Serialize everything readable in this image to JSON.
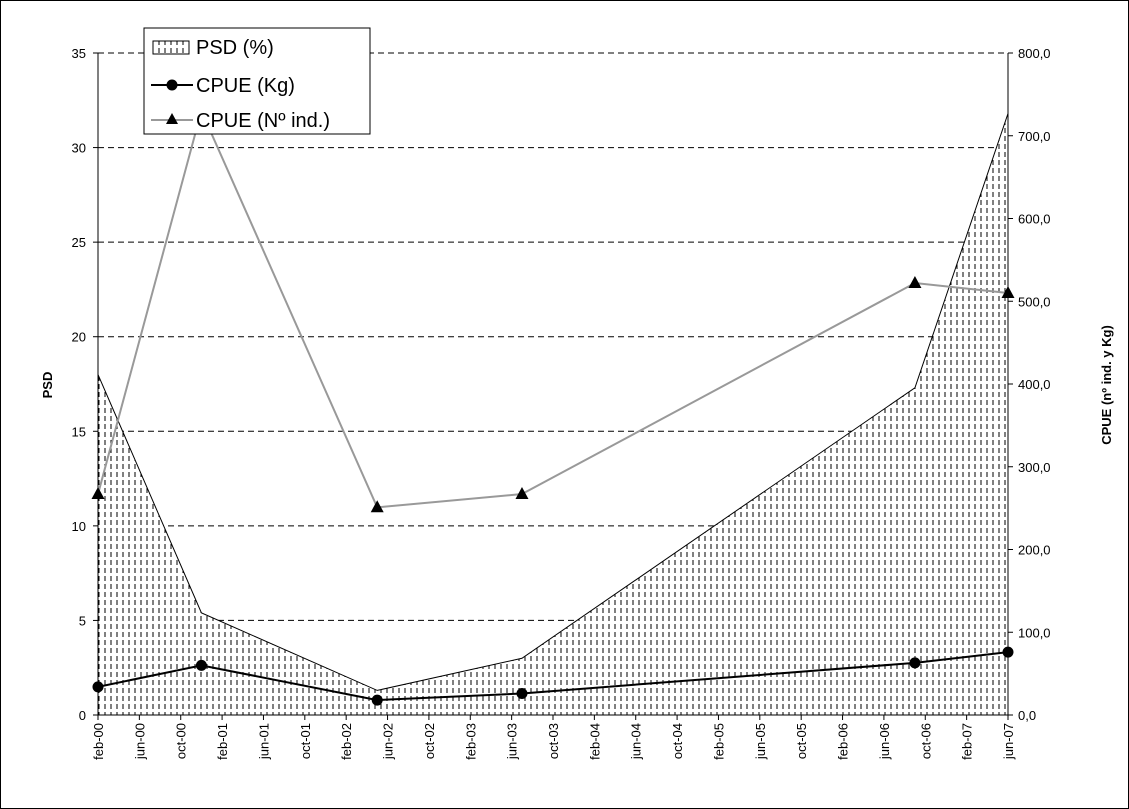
{
  "chart_data": {
    "type": "area",
    "x_categories": [
      "feb-00",
      "jun-00",
      "oct-00",
      "feb-01",
      "jun-01",
      "oct-01",
      "feb-02",
      "jun-02",
      "oct-02",
      "feb-03",
      "jun-03",
      "oct-03",
      "feb-04",
      "jun-04",
      "oct-04",
      "feb-05",
      "jun-05",
      "oct-05",
      "feb-06",
      "jun-06",
      "oct-06",
      "feb-07",
      "jun-07"
    ],
    "y_left": {
      "label": "PSD",
      "ylim": [
        0,
        35
      ],
      "ticks": [
        "0",
        "5",
        "10",
        "15",
        "20",
        "25",
        "30",
        "35"
      ]
    },
    "y_right": {
      "label": "CPUE (nº ind. y Kg)",
      "ylim": [
        0,
        800
      ],
      "ticks": [
        "0,0",
        "100,0",
        "200,0",
        "300,0",
        "400,0",
        "500,0",
        "600,0",
        "700,0",
        "800,0"
      ]
    },
    "grid": "horizontal dashed",
    "legend_position": "top-left",
    "series": [
      {
        "name": "PSD (%)",
        "type": "area",
        "axis": "left",
        "color": "#000000",
        "points": [
          {
            "x": "feb-00",
            "y": 18.0
          },
          {
            "x": "dec-00",
            "y": 5.4
          },
          {
            "x": "may-02",
            "y": 1.3
          },
          {
            "x": "jul-03",
            "y": 3.0
          },
          {
            "x": "sep-06",
            "y": 17.3
          },
          {
            "x": "jun-07",
            "y": 31.8
          }
        ]
      },
      {
        "name": "CPUE (Kg)",
        "type": "line",
        "axis": "right",
        "marker": "circle",
        "color": "#000000",
        "points": [
          {
            "x": "feb-00",
            "y": 34
          },
          {
            "x": "dec-00",
            "y": 60
          },
          {
            "x": "may-02",
            "y": 18
          },
          {
            "x": "jul-03",
            "y": 26
          },
          {
            "x": "sep-06",
            "y": 63
          },
          {
            "x": "jun-07",
            "y": 76
          }
        ]
      },
      {
        "name": "CPUE (Nº ind.)",
        "type": "line",
        "axis": "right",
        "marker": "triangle",
        "color": "#999999",
        "points": [
          {
            "x": "feb-00",
            "y": 267
          },
          {
            "x": "dec-00",
            "y": 730
          },
          {
            "x": "may-02",
            "y": 251
          },
          {
            "x": "jul-03",
            "y": 267
          },
          {
            "x": "sep-06",
            "y": 522
          },
          {
            "x": "jun-07",
            "y": 510
          }
        ]
      }
    ]
  }
}
